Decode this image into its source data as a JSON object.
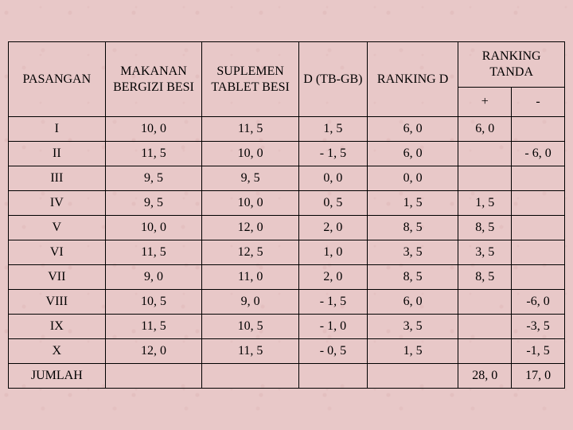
{
  "type": "table",
  "background_color": "#e8c8c8",
  "border_color": "#000000",
  "text_color": "#000000",
  "font_family": "Times New Roman",
  "header_fontsize": 16,
  "cell_fontsize": 16,
  "columns": {
    "pasangan": "PASANGAN",
    "gb": "MAKANAN BERGIZI BESI",
    "tb": "SUPLEMEN TABLET BESI",
    "d": "D (TB-GB)",
    "ranking_d": "RANKING D",
    "ranking_tanda": "RANKING TANDA",
    "plus": "+",
    "minus": "-"
  },
  "rows": [
    {
      "pasangan": "I",
      "gb": "10, 0",
      "tb": "11, 5",
      "d": "1, 5",
      "rd": "6, 0",
      "rtp": "6, 0",
      "rtm": ""
    },
    {
      "pasangan": "II",
      "gb": "11, 5",
      "tb": "10, 0",
      "d": "- 1, 5",
      "rd": "6, 0",
      "rtp": "",
      "rtm": "- 6, 0"
    },
    {
      "pasangan": "III",
      "gb": "9, 5",
      "tb": "9, 5",
      "d": "0, 0",
      "rd": "0, 0",
      "rtp": "",
      "rtm": ""
    },
    {
      "pasangan": "IV",
      "gb": "9, 5",
      "tb": "10, 0",
      "d": "0, 5",
      "rd": "1, 5",
      "rtp": "1, 5",
      "rtm": ""
    },
    {
      "pasangan": "V",
      "gb": "10, 0",
      "tb": "12, 0",
      "d": "2, 0",
      "rd": "8, 5",
      "rtp": "8, 5",
      "rtm": ""
    },
    {
      "pasangan": "VI",
      "gb": "11, 5",
      "tb": "12, 5",
      "d": "1, 0",
      "rd": "3, 5",
      "rtp": "3, 5",
      "rtm": ""
    },
    {
      "pasangan": "VII",
      "gb": "9, 0",
      "tb": "11, 0",
      "d": "2, 0",
      "rd": "8, 5",
      "rtp": "8, 5",
      "rtm": ""
    },
    {
      "pasangan": "VIII",
      "gb": "10, 5",
      "tb": "9, 0",
      "d": "- 1, 5",
      "rd": "6, 0",
      "rtp": "",
      "rtm": "-6, 0"
    },
    {
      "pasangan": "IX",
      "gb": "11, 5",
      "tb": "10, 5",
      "d": "- 1, 0",
      "rd": "3, 5",
      "rtp": "",
      "rtm": "-3, 5"
    },
    {
      "pasangan": "X",
      "gb": "12, 0",
      "tb": "11, 5",
      "d": "- 0, 5",
      "rd": "1, 5",
      "rtp": "",
      "rtm": "-1, 5"
    },
    {
      "pasangan": "JUMLAH",
      "gb": "",
      "tb": "",
      "d": "",
      "rd": "",
      "rtp": "28, 0",
      "rtm": "17, 0"
    }
  ]
}
